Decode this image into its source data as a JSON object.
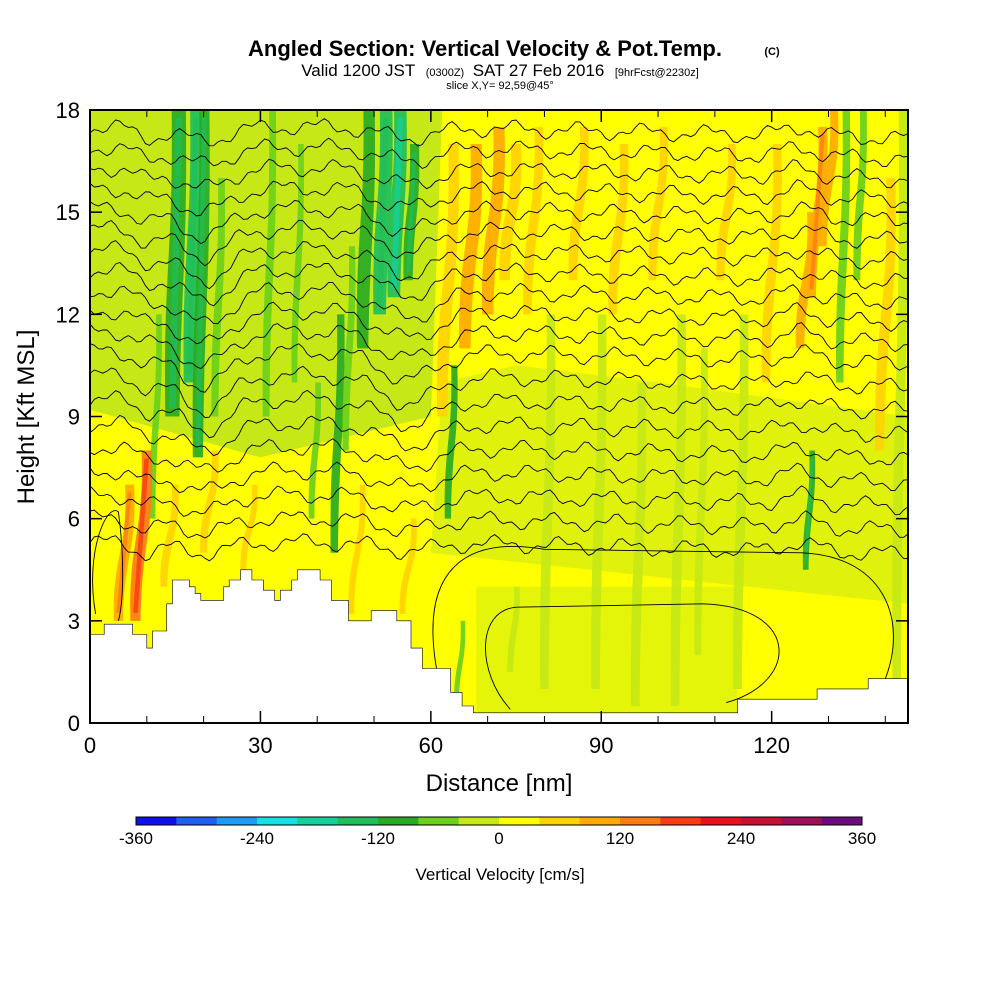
{
  "header": {
    "title": "Angled Section: Vertical Velocity & Pot.Temp.",
    "title_mark": "(C)",
    "valid_prefix": "Valid 1200 JST",
    "valid_utc": "(0300Z)",
    "valid_date": "SAT 27 Feb 2016",
    "forecast": "[9hrFcst@2230z]",
    "slice": "slice X,Y= 92,59@45°"
  },
  "chart_data": {
    "type": "heatmap",
    "xlabel": "Distance [nm]",
    "ylabel": "Height [Kft MSL]",
    "xlim": [
      0,
      144
    ],
    "ylim": [
      0,
      18
    ],
    "x_ticks": [
      0,
      30,
      60,
      90,
      120
    ],
    "y_ticks": [
      0,
      3,
      6,
      9,
      12,
      15,
      18
    ],
    "grid": false,
    "colorbar": {
      "label": "Vertical Velocity [cm/s]",
      "range": [
        -360,
        360
      ],
      "ticks": [
        -360,
        -240,
        -120,
        0,
        120,
        240,
        360
      ],
      "colors": [
        "#1010ee",
        "#1e5ef0",
        "#1c9cf4",
        "#14e0e6",
        "#14d09a",
        "#20be5a",
        "#28aa24",
        "#6ad01a",
        "#c6e816",
        "#ffff00",
        "#ffd200",
        "#ffaa00",
        "#ff7c14",
        "#f63c14",
        "#e8101c",
        "#c81034",
        "#9e0e58",
        "#6e0a80"
      ],
      "placement": "bottom"
    },
    "terrain": [
      [
        0,
        2.6
      ],
      [
        2.5,
        2.6
      ],
      [
        2.5,
        2.9
      ],
      [
        7.5,
        2.9
      ],
      [
        7.5,
        2.6
      ],
      [
        10,
        2.6
      ],
      [
        10,
        2.2
      ],
      [
        11,
        2.2
      ],
      [
        11,
        2.7
      ],
      [
        13.5,
        2.7
      ],
      [
        13.5,
        3.5
      ],
      [
        14.5,
        3.5
      ],
      [
        14.5,
        4.2
      ],
      [
        17.5,
        4.2
      ],
      [
        17.5,
        4.0
      ],
      [
        18.5,
        4.0
      ],
      [
        18.5,
        3.8
      ],
      [
        19.5,
        3.8
      ],
      [
        19.5,
        3.6
      ],
      [
        23.5,
        3.6
      ],
      [
        23.5,
        4.0
      ],
      [
        24.5,
        4.0
      ],
      [
        24.5,
        4.2
      ],
      [
        26.5,
        4.2
      ],
      [
        26.5,
        4.5
      ],
      [
        28.5,
        4.5
      ],
      [
        28.5,
        4.2
      ],
      [
        30.5,
        4.2
      ],
      [
        30.5,
        3.9
      ],
      [
        32.5,
        3.9
      ],
      [
        32.5,
        3.6
      ],
      [
        33.5,
        3.6
      ],
      [
        33.5,
        3.9
      ],
      [
        35.5,
        3.9
      ],
      [
        35.5,
        4.2
      ],
      [
        36.5,
        4.2
      ],
      [
        36.5,
        4.5
      ],
      [
        40.5,
        4.5
      ],
      [
        40.5,
        4.2
      ],
      [
        42.5,
        4.2
      ],
      [
        42.5,
        3.6
      ],
      [
        45.5,
        3.6
      ],
      [
        45.5,
        3.0
      ],
      [
        49.5,
        3.0
      ],
      [
        49.5,
        3.3
      ],
      [
        54,
        3.3
      ],
      [
        54,
        3.0
      ],
      [
        56.5,
        3.0
      ],
      [
        56.5,
        2.2
      ],
      [
        58.5,
        2.2
      ],
      [
        58.5,
        1.6
      ],
      [
        63.5,
        1.6
      ],
      [
        63.5,
        0.9
      ],
      [
        65.5,
        0.9
      ],
      [
        65.5,
        0.5
      ],
      [
        67.5,
        0.5
      ],
      [
        67.5,
        0.3
      ],
      [
        114,
        0.3
      ],
      [
        114,
        0.7
      ],
      [
        128,
        0.7
      ],
      [
        128,
        1.0
      ],
      [
        137,
        1.0
      ],
      [
        137,
        1.3
      ],
      [
        144,
        1.3
      ]
    ],
    "updrafts": [
      {
        "x": 5,
        "ymin": 3,
        "ymax": 7,
        "width": 1.6,
        "value": 110
      },
      {
        "x": 8,
        "ymin": 3,
        "ymax": 8,
        "width": 1.8,
        "value": 130
      },
      {
        "x": 13,
        "ymin": 4,
        "ymax": 7,
        "width": 1.2,
        "value": 60
      },
      {
        "x": 20,
        "ymin": 5,
        "ymax": 8,
        "width": 1.2,
        "value": 60
      },
      {
        "x": 27,
        "ymin": 4.5,
        "ymax": 7,
        "width": 1.0,
        "value": 40
      },
      {
        "x": 46,
        "ymin": 3.2,
        "ymax": 7,
        "width": 1.0,
        "value": 50
      },
      {
        "x": 55,
        "ymin": 3.2,
        "ymax": 6,
        "width": 1.0,
        "value": 50
      },
      {
        "x": 62,
        "ymin": 9,
        "ymax": 17,
        "width": 1.8,
        "value": 70
      },
      {
        "x": 66,
        "ymin": 11,
        "ymax": 17,
        "width": 2.0,
        "value": 80
      },
      {
        "x": 70,
        "ymin": 12,
        "ymax": 17.5,
        "width": 2.0,
        "value": 90
      },
      {
        "x": 73,
        "ymin": 13,
        "ymax": 17,
        "width": 1.8,
        "value": 70
      },
      {
        "x": 77,
        "ymin": 12,
        "ymax": 17.5,
        "width": 1.5,
        "value": 40
      },
      {
        "x": 85,
        "ymin": 13,
        "ymax": 17.5,
        "width": 1.5,
        "value": 40
      },
      {
        "x": 92,
        "ymin": 12,
        "ymax": 17,
        "width": 1.5,
        "value": 40
      },
      {
        "x": 99,
        "ymin": 13,
        "ymax": 17.5,
        "width": 1.4,
        "value": 40
      },
      {
        "x": 111,
        "ymin": 13,
        "ymax": 17,
        "width": 1.4,
        "value": 40
      },
      {
        "x": 119,
        "ymin": 10,
        "ymax": 17,
        "width": 1.5,
        "value": 40
      },
      {
        "x": 125,
        "ymin": 11,
        "ymax": 15,
        "width": 1.5,
        "value": 90
      },
      {
        "x": 127,
        "ymin": 12.5,
        "ymax": 17.5,
        "width": 1.6,
        "value": 110
      },
      {
        "x": 129,
        "ymin": 14,
        "ymax": 18,
        "width": 1.4,
        "value": 90
      },
      {
        "x": 139,
        "ymin": 8,
        "ymax": 16,
        "width": 1.6,
        "value": 40
      }
    ],
    "downdrafts": [
      {
        "x": 11,
        "ymin": 6,
        "ymax": 12,
        "width": 1.0,
        "value": -60
      },
      {
        "x": 14.5,
        "ymin": 9,
        "ymax": 18,
        "width": 2.5,
        "value": -110
      },
      {
        "x": 17.5,
        "ymin": 10,
        "ymax": 18,
        "width": 2.0,
        "value": -130
      },
      {
        "x": 19,
        "ymin": 7.8,
        "ymax": 18,
        "width": 1.8,
        "value": -110
      },
      {
        "x": 22,
        "ymin": 9,
        "ymax": 16,
        "width": 1.2,
        "value": -80
      },
      {
        "x": 31,
        "ymin": 9,
        "ymax": 18,
        "width": 1.2,
        "value": -60
      },
      {
        "x": 36,
        "ymin": 10,
        "ymax": 17,
        "width": 1.0,
        "value": -50
      },
      {
        "x": 39,
        "ymin": 6,
        "ymax": 10,
        "width": 1.0,
        "value": -60
      },
      {
        "x": 43,
        "ymin": 5,
        "ymax": 12,
        "width": 1.3,
        "value": -90
      },
      {
        "x": 45,
        "ymin": 8,
        "ymax": 14,
        "width": 1.1,
        "value": -80
      },
      {
        "x": 48,
        "ymin": 11,
        "ymax": 18,
        "width": 2.0,
        "value": -90
      },
      {
        "x": 51,
        "ymin": 12,
        "ymax": 18,
        "width": 2.2,
        "value": -130
      },
      {
        "x": 53.5,
        "ymin": 12.5,
        "ymax": 18,
        "width": 2.2,
        "value": -150
      },
      {
        "x": 56,
        "ymin": 13,
        "ymax": 17,
        "width": 1.6,
        "value": -110
      },
      {
        "x": 63,
        "ymin": 6,
        "ymax": 10.5,
        "width": 1.1,
        "value": -90
      },
      {
        "x": 64.5,
        "ymin": 0.5,
        "ymax": 3,
        "width": 0.8,
        "value": -60
      },
      {
        "x": 74,
        "ymin": 1.5,
        "ymax": 4,
        "width": 1.0,
        "value": -40
      },
      {
        "x": 80,
        "ymin": 1,
        "ymax": 12,
        "width": 1.5,
        "value": -40
      },
      {
        "x": 89,
        "ymin": 1,
        "ymax": 12,
        "width": 1.5,
        "value": -40
      },
      {
        "x": 96,
        "ymin": 0.5,
        "ymax": 10,
        "width": 1.5,
        "value": -40
      },
      {
        "x": 103,
        "ymin": 0.5,
        "ymax": 12,
        "width": 1.5,
        "value": -40
      },
      {
        "x": 107,
        "ymin": 2,
        "ymax": 11,
        "width": 1.2,
        "value": -40
      },
      {
        "x": 114,
        "ymin": 1,
        "ymax": 12,
        "width": 1.5,
        "value": -40
      },
      {
        "x": 126,
        "ymin": 4.5,
        "ymax": 8,
        "width": 1.0,
        "value": -110
      },
      {
        "x": 132,
        "ymin": 10,
        "ymax": 18,
        "width": 1.3,
        "value": -70
      },
      {
        "x": 135,
        "ymin": 13,
        "ymax": 18,
        "width": 1.2,
        "value": -50
      },
      {
        "x": 142,
        "ymin": 1.3,
        "ymax": 18,
        "width": 1.5,
        "value": -40
      }
    ],
    "theta_contours": [
      {
        "label": "",
        "base": 5.3,
        "dip": 0.3
      },
      {
        "label": "",
        "base": 6.0,
        "dip": 0.4
      },
      {
        "label": "",
        "base": 6.7,
        "dip": 0.5
      },
      {
        "label": "",
        "base": 7.4,
        "dip": 0.6
      },
      {
        "label": "",
        "base": 8.1,
        "dip": 0.7
      },
      {
        "label": "",
        "base": 8.8,
        "dip": 0.8
      },
      {
        "label": "",
        "base": 9.5,
        "dip": 0.9
      },
      {
        "label": "",
        "base": 10.2,
        "dip": 1.0
      },
      {
        "label": "",
        "base": 10.9,
        "dip": 1.0
      },
      {
        "label": "",
        "base": 11.5,
        "dip": 1.0
      },
      {
        "label": "",
        "base": 12.1,
        "dip": 1.0
      },
      {
        "label": "",
        "base": 12.7,
        "dip": 1.0
      },
      {
        "label": "",
        "base": 13.3,
        "dip": 0.9
      },
      {
        "label": "",
        "base": 13.9,
        "dip": 0.9
      },
      {
        "label": "",
        "base": 14.5,
        "dip": 0.8
      },
      {
        "label": "",
        "base": 15.1,
        "dip": 0.8
      },
      {
        "label": "",
        "base": 15.7,
        "dip": 0.7
      },
      {
        "label": "",
        "base": 16.3,
        "dip": 0.6
      },
      {
        "label": "",
        "base": 16.9,
        "dip": 0.5
      },
      {
        "label": "",
        "base": 17.5,
        "dip": 0.4
      }
    ]
  }
}
